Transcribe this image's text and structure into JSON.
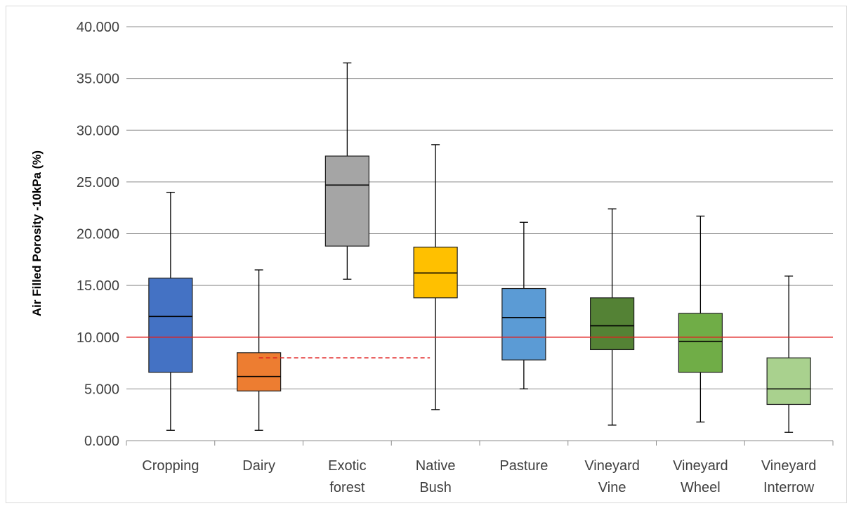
{
  "chart_data": {
    "type": "box",
    "title": "",
    "xlabel": "",
    "ylabel": "Air Filled Porosity -10kPa (%)",
    "ylim": [
      0,
      40
    ],
    "yticks": [
      "0.000",
      "5.000",
      "10.000",
      "15.000",
      "20.000",
      "25.000",
      "30.000",
      "35.000",
      "40.000"
    ],
    "grid": true,
    "categories": [
      {
        "label": [
          "Cropping"
        ],
        "min": 1.0,
        "q1": 6.6,
        "median": 12.0,
        "q3": 15.7,
        "max": 24.0,
        "color": "#4472c4"
      },
      {
        "label": [
          "Dairy"
        ],
        "min": 1.0,
        "q1": 4.8,
        "median": 6.2,
        "q3": 8.5,
        "max": 16.5,
        "color": "#ed7d31"
      },
      {
        "label": [
          "Exotic",
          "forest"
        ],
        "min": 15.6,
        "q1": 18.8,
        "median": 24.7,
        "q3": 27.5,
        "max": 36.5,
        "color": "#a5a5a5"
      },
      {
        "label": [
          "Native",
          "Bush"
        ],
        "min": 3.0,
        "q1": 13.8,
        "median": 16.2,
        "q3": 18.7,
        "max": 28.6,
        "color": "#ffc000"
      },
      {
        "label": [
          "Pasture"
        ],
        "min": 5.0,
        "q1": 7.8,
        "median": 11.9,
        "q3": 14.7,
        "max": 21.1,
        "color": "#5b9bd5"
      },
      {
        "label": [
          "Vineyard",
          "Vine"
        ],
        "min": 1.5,
        "q1": 8.8,
        "median": 11.1,
        "q3": 13.8,
        "max": 22.4,
        "color": "#548235"
      },
      {
        "label": [
          "Vineyard",
          "Wheel"
        ],
        "min": 1.8,
        "q1": 6.6,
        "median": 9.6,
        "q3": 12.3,
        "max": 21.7,
        "color": "#70ad47"
      },
      {
        "label": [
          "Vineyard",
          "Interrow"
        ],
        "min": 0.8,
        "q1": 3.5,
        "median": 5.0,
        "q3": 8.0,
        "max": 15.9,
        "color": "#a9d18e"
      }
    ],
    "reference_lines": [
      {
        "value": 10,
        "style": "solid",
        "color": "#e02020",
        "from_category": 0,
        "to_category": 7
      },
      {
        "value": 8,
        "style": "dashed",
        "color": "#e02020",
        "from_category": 1,
        "to_category": 3
      }
    ]
  }
}
